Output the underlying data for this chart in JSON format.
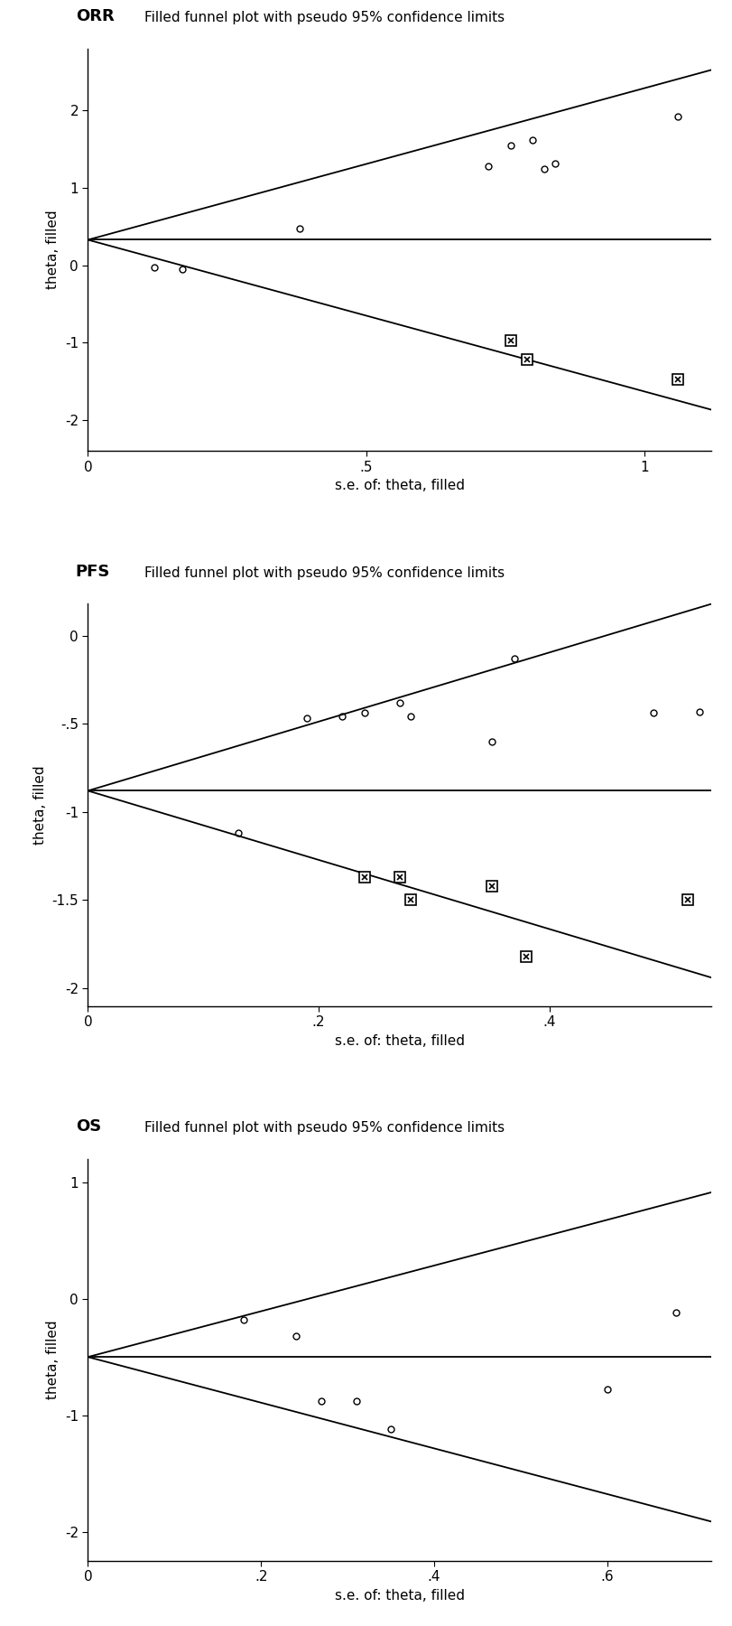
{
  "plots": [
    {
      "label": "ORR",
      "title": "Filled funnel plot with pseudo 95% confidence limits",
      "xlabel": "s.e. of: theta, filled",
      "ylabel": "theta, filled",
      "theta_hat": 0.33,
      "xlim": [
        0,
        1.12
      ],
      "ylim": [
        -2.4,
        2.8
      ],
      "yticks": [
        -2,
        -1,
        0,
        1,
        2
      ],
      "ytick_labels": [
        "-2",
        "-1",
        "0",
        "1",
        "2"
      ],
      "xticks": [
        0,
        0.5,
        1.0
      ],
      "xtick_labels": [
        "0",
        ".5",
        "1"
      ],
      "open_points": [
        [
          0.12,
          -0.03
        ],
        [
          0.17,
          -0.05
        ],
        [
          0.38,
          0.47
        ],
        [
          0.72,
          1.28
        ],
        [
          0.76,
          1.55
        ],
        [
          0.8,
          1.62
        ],
        [
          0.82,
          1.25
        ],
        [
          0.84,
          1.32
        ],
        [
          1.06,
          1.92
        ]
      ],
      "filled_points": [
        [
          0.76,
          -0.97
        ],
        [
          0.79,
          -1.22
        ],
        [
          1.06,
          -1.47
        ]
      ],
      "ci_slope": 1.96,
      "x_max_funnel": 1.12
    },
    {
      "label": "PFS",
      "title": "Filled funnel plot with pseudo 95% confidence limits",
      "xlabel": "s.e. of: theta, filled",
      "ylabel": "theta, filled",
      "theta_hat": -0.88,
      "xlim": [
        0,
        0.54
      ],
      "ylim": [
        -2.1,
        0.18
      ],
      "yticks": [
        -2,
        -1.5,
        -1,
        -0.5,
        0
      ],
      "ytick_labels": [
        "-2",
        "-1.5",
        "-1",
        "-.5",
        "0"
      ],
      "xticks": [
        0,
        0.2,
        0.4
      ],
      "xtick_labels": [
        "0",
        ".2",
        ".4"
      ],
      "open_points": [
        [
          0.13,
          -1.12
        ],
        [
          0.19,
          -0.47
        ],
        [
          0.22,
          -0.46
        ],
        [
          0.24,
          -0.44
        ],
        [
          0.27,
          -0.38
        ],
        [
          0.28,
          -0.46
        ],
        [
          0.35,
          -0.6
        ],
        [
          0.37,
          -0.13
        ],
        [
          0.49,
          -0.44
        ],
        [
          0.53,
          -0.43
        ]
      ],
      "filled_points": [
        [
          0.24,
          -1.37
        ],
        [
          0.27,
          -1.37
        ],
        [
          0.28,
          -1.5
        ],
        [
          0.35,
          -1.42
        ],
        [
          0.38,
          -1.82
        ],
        [
          0.52,
          -1.5
        ]
      ],
      "ci_slope": 1.96,
      "x_max_funnel": 0.54
    },
    {
      "label": "OS",
      "title": "Filled funnel plot with pseudo 95% confidence limits",
      "xlabel": "s.e. of: theta, filled",
      "ylabel": "theta, filled",
      "theta_hat": -0.5,
      "xlim": [
        0,
        0.72
      ],
      "ylim": [
        -2.25,
        1.2
      ],
      "yticks": [
        -2,
        -1,
        0,
        1
      ],
      "ytick_labels": [
        "-2",
        "-1",
        "0",
        "1"
      ],
      "xticks": [
        0,
        0.2,
        0.4,
        0.6
      ],
      "xtick_labels": [
        "0",
        ".2",
        ".4",
        ".6"
      ],
      "open_points": [
        [
          0.18,
          -0.18
        ],
        [
          0.24,
          -0.32
        ],
        [
          0.27,
          -0.88
        ],
        [
          0.31,
          -0.88
        ],
        [
          0.35,
          -1.12
        ],
        [
          0.6,
          -0.78
        ],
        [
          0.68,
          -0.12
        ]
      ],
      "filled_points": [],
      "ci_slope": 1.96,
      "x_max_funnel": 0.72
    }
  ],
  "bg_color": "#ffffff",
  "line_color": "#000000",
  "point_color": "#000000",
  "filled_marker_color": "#000000"
}
